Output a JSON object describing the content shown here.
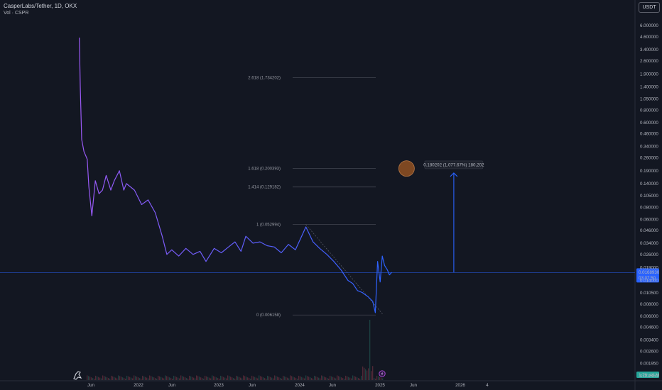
{
  "header": {
    "symbol_title": "CasperLabs/Tether, 1D, OKX",
    "volume_label": "Vol · CSPR",
    "currency": "USDT"
  },
  "price_badge": {
    "price": "0.0168930",
    "countdown": "03:07:50",
    "volume": "1.79 .42 M"
  },
  "projection": {
    "label": "0.180202 (1,077.67%) 180,202"
  },
  "colors": {
    "background": "#131722",
    "line_start": "#9b59f5",
    "line_end": "#2962ff",
    "fib_line": "#434651",
    "arrow": "#2962ff",
    "target_circle": "#8a4e22"
  },
  "chart_data": {
    "type": "line",
    "title": "CasperLabs/Tether, 1D, OKX",
    "y_scale": "log",
    "ylim": [
      0.00125,
      7.5
    ],
    "y_ticks": [
      "6.000000",
      "4.600000",
      "3.400000",
      "2.600000",
      "1.900000",
      "1.400000",
      "1.050000",
      "0.800000",
      "0.600000",
      "0.460000",
      "0.340000",
      "0.260000",
      "0.190000",
      "0.140000",
      "0.105000",
      "0.080000",
      "0.060000",
      "0.046000",
      "0.034000",
      "0.026000",
      "0.019000",
      "0.014000",
      "0.010500",
      "0.008000",
      "0.006000",
      "0.004600",
      "0.003400",
      "0.002600",
      "0.001950",
      "0.001450"
    ],
    "x_tick_labels": [
      "Jun",
      "2022",
      "Jun",
      "2023",
      "Jun",
      "2024",
      "Jun",
      "2025",
      "Jun",
      "2026",
      "4"
    ],
    "series": [
      {
        "x": [
          "2021-05-12",
          "2021-05-16",
          "2021-05-22",
          "2021-06-01",
          "2021-06-15",
          "2021-06-22",
          "2021-07-05",
          "2021-07-20",
          "2021-08-05",
          "2021-08-20",
          "2021-09-05",
          "2021-09-25",
          "2021-10-10",
          "2021-11-01",
          "2021-11-20",
          "2021-12-01",
          "2022-01-05",
          "2022-02-05",
          "2022-03-05",
          "2022-04-05",
          "2022-05-05",
          "2022-05-25",
          "2022-06-15",
          "2022-07-15",
          "2022-08-15",
          "2022-09-15",
          "2022-10-15",
          "2022-11-10",
          "2022-12-15",
          "2023-01-15",
          "2023-02-15",
          "2023-03-15",
          "2023-04-10",
          "2023-05-01",
          "2023-06-01",
          "2023-07-01",
          "2023-08-01",
          "2023-09-01",
          "2023-10-01",
          "2023-11-01",
          "2023-12-01",
          "2024-01-01",
          "2024-01-15",
          "2024-02-15",
          "2024-03-15",
          "2024-04-15",
          "2024-05-15",
          "2024-06-15",
          "2024-07-15",
          "2024-08-05",
          "2024-08-25",
          "2024-09-15",
          "2024-10-10",
          "2024-10-30",
          "2024-11-10",
          "2024-11-20",
          "2024-12-01",
          "2024-12-10",
          "2024-12-20",
          "2025-01-01",
          "2025-01-10",
          "2025-01-20"
        ],
        "values": [
          4.5,
          1.4,
          0.4,
          0.3,
          0.25,
          0.13,
          0.065,
          0.15,
          0.11,
          0.12,
          0.17,
          0.12,
          0.15,
          0.19,
          0.12,
          0.14,
          0.12,
          0.085,
          0.095,
          0.07,
          0.04,
          0.026,
          0.029,
          0.025,
          0.03,
          0.026,
          0.028,
          0.022,
          0.03,
          0.027,
          0.031,
          0.035,
          0.028,
          0.04,
          0.034,
          0.035,
          0.032,
          0.031,
          0.027,
          0.033,
          0.029,
          0.042,
          0.05,
          0.035,
          0.03,
          0.026,
          0.022,
          0.018,
          0.014,
          0.013,
          0.011,
          0.0105,
          0.0095,
          0.0085,
          0.0065,
          0.022,
          0.0135,
          0.025,
          0.02,
          0.018,
          0.016,
          0.017
        ]
      }
    ],
    "fib_levels": [
      {
        "label": "2.618 (1.734202)",
        "value": 1.734202
      },
      {
        "label": "1.618 (0.200393)",
        "value": 0.200393
      },
      {
        "label": "1.414 (0.129182)",
        "value": 0.129182
      },
      {
        "label": "1 (0.052994)",
        "value": 0.052994
      },
      {
        "label": "0 (0.006158)",
        "value": 0.006158
      }
    ],
    "fib_range": {
      "start": "2024-01-15",
      "end": "2024-12-15"
    },
    "current_price": 0.016893,
    "projection_target": 0.180202,
    "projection_date": "2025-10-15",
    "target_circle": {
      "date": "2025-03-25",
      "value": 0.200393
    },
    "grid": false
  }
}
